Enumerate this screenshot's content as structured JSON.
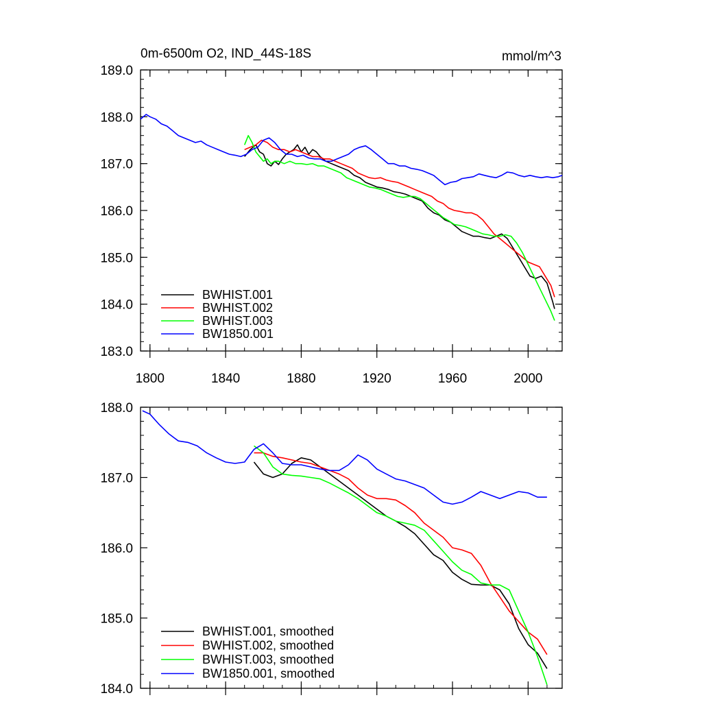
{
  "chart_data": [
    {
      "type": "line",
      "title": "0m-6500m O2, IND_44S-18S",
      "units": "mmol/m^3",
      "xlim": [
        1795,
        2018
      ],
      "ylim": [
        183.0,
        189.0
      ],
      "xticks": [
        1800,
        1840,
        1880,
        1920,
        1960,
        2000
      ],
      "yticks": [
        183.0,
        184.0,
        185.0,
        186.0,
        187.0,
        188.0,
        189.0
      ],
      "yticks_label": [
        "183.0",
        "184.0",
        "185.0",
        "186.0",
        "187.0",
        "188.0",
        "189.0"
      ],
      "xticks_label": [
        "1800",
        "1840",
        "1880",
        "1920",
        "1960",
        "2000"
      ],
      "grid": false,
      "legend_position": "bottom-left",
      "series": [
        {
          "name": "BWHIST.001",
          "color": "#000000",
          "x": [
            1850,
            1853,
            1856,
            1858,
            1860,
            1862,
            1864,
            1866,
            1868,
            1870,
            1872,
            1874,
            1876,
            1878,
            1880,
            1882,
            1884,
            1886,
            1888,
            1890,
            1893,
            1896,
            1899,
            1902,
            1905,
            1908,
            1911,
            1914,
            1917,
            1920,
            1923,
            1926,
            1929,
            1932,
            1935,
            1938,
            1941,
            1944,
            1947,
            1950,
            1953,
            1956,
            1959,
            1962,
            1965,
            1968,
            1971,
            1974,
            1977,
            1980,
            1983,
            1986,
            1989,
            1992,
            1995,
            1998,
            2001,
            2004,
            2007,
            2010,
            2013,
            2014
          ],
          "y": [
            187.15,
            187.3,
            187.4,
            187.25,
            187.2,
            187.0,
            186.95,
            187.05,
            186.98,
            187.1,
            187.2,
            187.25,
            187.3,
            187.4,
            187.25,
            187.35,
            187.2,
            187.3,
            187.25,
            187.15,
            187.05,
            187.0,
            186.95,
            186.9,
            186.85,
            186.75,
            186.7,
            186.6,
            186.55,
            186.5,
            186.48,
            186.45,
            186.4,
            186.38,
            186.35,
            186.3,
            186.25,
            186.2,
            186.05,
            185.95,
            185.9,
            185.8,
            185.75,
            185.65,
            185.55,
            185.5,
            185.45,
            185.45,
            185.42,
            185.4,
            185.45,
            185.5,
            185.4,
            185.2,
            185.0,
            184.8,
            184.6,
            184.55,
            184.6,
            184.45,
            184.05,
            183.9
          ]
        },
        {
          "name": "BWHIST.002",
          "color": "#ff0000",
          "x": [
            1850,
            1853,
            1856,
            1859,
            1862,
            1865,
            1868,
            1871,
            1874,
            1877,
            1880,
            1883,
            1886,
            1889,
            1892,
            1895,
            1898,
            1901,
            1904,
            1907,
            1910,
            1913,
            1916,
            1919,
            1922,
            1925,
            1928,
            1931,
            1934,
            1937,
            1940,
            1943,
            1946,
            1949,
            1952,
            1955,
            1958,
            1961,
            1964,
            1967,
            1970,
            1973,
            1976,
            1979,
            1982,
            1985,
            1988,
            1991,
            1994,
            1997,
            2000,
            2003,
            2006,
            2009,
            2012,
            2014
          ],
          "y": [
            187.3,
            187.35,
            187.4,
            187.5,
            187.45,
            187.35,
            187.3,
            187.3,
            187.25,
            187.3,
            187.25,
            187.2,
            187.15,
            187.15,
            187.1,
            187.1,
            187.05,
            187.0,
            186.95,
            186.9,
            186.8,
            186.75,
            186.7,
            186.68,
            186.7,
            186.65,
            186.62,
            186.6,
            186.55,
            186.5,
            186.45,
            186.4,
            186.35,
            186.3,
            186.2,
            186.15,
            186.05,
            186.0,
            185.98,
            185.95,
            185.95,
            185.9,
            185.8,
            185.65,
            185.5,
            185.4,
            185.3,
            185.2,
            185.1,
            185.0,
            184.9,
            184.85,
            184.8,
            184.6,
            184.4,
            184.15
          ]
        },
        {
          "name": "BWHIST.003",
          "color": "#00ff00",
          "x": [
            1850,
            1852,
            1854,
            1856,
            1858,
            1860,
            1862,
            1864,
            1866,
            1868,
            1871,
            1874,
            1877,
            1880,
            1883,
            1886,
            1889,
            1892,
            1895,
            1898,
            1901,
            1904,
            1907,
            1910,
            1913,
            1916,
            1919,
            1922,
            1925,
            1928,
            1931,
            1934,
            1937,
            1940,
            1943,
            1946,
            1949,
            1952,
            1955,
            1958,
            1961,
            1964,
            1967,
            1970,
            1973,
            1976,
            1979,
            1982,
            1985,
            1988,
            1991,
            1994,
            1997,
            2000,
            2003,
            2006,
            2009,
            2012,
            2014
          ],
          "y": [
            187.4,
            187.6,
            187.45,
            187.25,
            187.15,
            187.05,
            187.1,
            187.0,
            187.05,
            187.05,
            187.0,
            187.05,
            187.0,
            187.0,
            186.98,
            187.0,
            186.95,
            186.95,
            186.9,
            186.85,
            186.8,
            186.7,
            186.65,
            186.6,
            186.55,
            186.5,
            186.48,
            186.45,
            186.4,
            186.35,
            186.3,
            186.28,
            186.3,
            186.3,
            186.25,
            186.15,
            186.05,
            185.95,
            185.85,
            185.78,
            185.7,
            185.68,
            185.65,
            185.6,
            185.55,
            185.5,
            185.48,
            185.45,
            185.45,
            185.48,
            185.45,
            185.3,
            185.1,
            184.85,
            184.6,
            184.35,
            184.1,
            183.85,
            183.65
          ]
        },
        {
          "name": "BW1850.001",
          "color": "#0000ff",
          "x": [
            1795,
            1798,
            1800,
            1803,
            1806,
            1809,
            1812,
            1815,
            1818,
            1821,
            1824,
            1827,
            1830,
            1833,
            1836,
            1839,
            1842,
            1845,
            1848,
            1851,
            1854,
            1857,
            1860,
            1863,
            1866,
            1869,
            1872,
            1875,
            1878,
            1881,
            1884,
            1887,
            1890,
            1893,
            1896,
            1899,
            1902,
            1905,
            1908,
            1911,
            1914,
            1917,
            1920,
            1923,
            1926,
            1929,
            1932,
            1935,
            1938,
            1941,
            1944,
            1947,
            1950,
            1953,
            1956,
            1959,
            1962,
            1965,
            1968,
            1971,
            1974,
            1977,
            1980,
            1983,
            1986,
            1989,
            1992,
            1995,
            1998,
            2001,
            2004,
            2007,
            2010,
            2013,
            2016,
            2018
          ],
          "y": [
            187.95,
            188.05,
            188.0,
            187.95,
            187.85,
            187.8,
            187.7,
            187.6,
            187.55,
            187.5,
            187.45,
            187.48,
            187.4,
            187.35,
            187.3,
            187.25,
            187.2,
            187.18,
            187.15,
            187.2,
            187.3,
            187.35,
            187.5,
            187.55,
            187.45,
            187.3,
            187.2,
            187.2,
            187.15,
            187.18,
            187.12,
            187.1,
            187.1,
            187.05,
            187.05,
            187.1,
            187.15,
            187.2,
            187.3,
            187.35,
            187.38,
            187.3,
            187.2,
            187.1,
            187.0,
            187.0,
            186.95,
            186.95,
            186.9,
            186.88,
            186.85,
            186.8,
            186.75,
            186.65,
            186.55,
            186.6,
            186.62,
            186.68,
            186.7,
            186.72,
            186.78,
            186.75,
            186.72,
            186.7,
            186.75,
            186.82,
            186.8,
            186.75,
            186.72,
            186.75,
            186.72,
            186.7,
            186.72,
            186.7,
            186.72,
            186.75
          ]
        }
      ]
    },
    {
      "type": "line",
      "title": "",
      "xlim": [
        1795,
        2018
      ],
      "ylim": [
        184.0,
        188.0
      ],
      "xticks": [
        1800,
        1840,
        1880,
        1920,
        1960,
        2000
      ],
      "yticks": [
        184.0,
        185.0,
        186.0,
        187.0,
        188.0
      ],
      "yticks_label": [
        "184.0",
        "185.0",
        "186.0",
        "187.0",
        "188.0"
      ],
      "grid": false,
      "legend_position": "bottom-left",
      "series": [
        {
          "name": "BWHIST.001, smoothed",
          "color": "#000000",
          "x": [
            1855,
            1860,
            1865,
            1870,
            1875,
            1880,
            1885,
            1890,
            1895,
            1900,
            1905,
            1910,
            1915,
            1920,
            1925,
            1930,
            1935,
            1940,
            1945,
            1950,
            1955,
            1960,
            1965,
            1970,
            1975,
            1980,
            1985,
            1990,
            1995,
            2000,
            2005,
            2010
          ],
          "y": [
            187.22,
            187.05,
            187.0,
            187.05,
            187.2,
            187.28,
            187.25,
            187.15,
            187.05,
            186.95,
            186.85,
            186.75,
            186.65,
            186.55,
            186.45,
            186.38,
            186.3,
            186.2,
            186.05,
            185.9,
            185.82,
            185.65,
            185.55,
            185.48,
            185.47,
            185.47,
            185.4,
            185.2,
            184.85,
            184.62,
            184.5,
            184.28
          ]
        },
        {
          "name": "BWHIST.002, smoothed",
          "color": "#ff0000",
          "x": [
            1855,
            1860,
            1865,
            1870,
            1875,
            1880,
            1885,
            1890,
            1895,
            1900,
            1905,
            1910,
            1915,
            1920,
            1925,
            1930,
            1935,
            1940,
            1945,
            1950,
            1955,
            1960,
            1965,
            1970,
            1975,
            1980,
            1985,
            1990,
            1995,
            2000,
            2005,
            2010
          ],
          "y": [
            187.35,
            187.35,
            187.3,
            187.28,
            187.25,
            187.22,
            187.2,
            187.15,
            187.1,
            187.05,
            186.98,
            186.85,
            186.75,
            186.7,
            186.7,
            186.68,
            186.6,
            186.5,
            186.35,
            186.25,
            186.15,
            186.0,
            185.97,
            185.92,
            185.75,
            185.5,
            185.3,
            185.1,
            184.95,
            184.8,
            184.7,
            184.48
          ]
        },
        {
          "name": "BWHIST.003, smoothed",
          "color": "#00ff00",
          "x": [
            1855,
            1860,
            1865,
            1870,
            1875,
            1880,
            1885,
            1890,
            1895,
            1900,
            1905,
            1910,
            1915,
            1920,
            1925,
            1930,
            1935,
            1940,
            1945,
            1950,
            1955,
            1960,
            1965,
            1970,
            1975,
            1980,
            1985,
            1990,
            1995,
            2000,
            2005,
            2010
          ],
          "y": [
            187.45,
            187.35,
            187.15,
            187.05,
            187.03,
            187.02,
            187.0,
            186.98,
            186.92,
            186.85,
            186.78,
            186.7,
            186.6,
            186.5,
            186.45,
            186.38,
            186.35,
            186.32,
            186.25,
            186.1,
            185.95,
            185.8,
            185.68,
            185.62,
            185.5,
            185.47,
            185.47,
            185.4,
            185.1,
            184.8,
            184.45,
            184.05
          ]
        },
        {
          "name": "BW1850.001, smoothed",
          "color": "#0000ff",
          "x": [
            1796,
            1800,
            1805,
            1810,
            1815,
            1820,
            1825,
            1830,
            1835,
            1840,
            1845,
            1850,
            1855,
            1860,
            1865,
            1870,
            1875,
            1880,
            1885,
            1890,
            1895,
            1900,
            1905,
            1910,
            1915,
            1920,
            1925,
            1930,
            1935,
            1940,
            1945,
            1950,
            1955,
            1960,
            1965,
            1970,
            1975,
            1980,
            1985,
            1990,
            1995,
            2000,
            2005,
            2010
          ],
          "y": [
            187.95,
            187.9,
            187.75,
            187.62,
            187.52,
            187.5,
            187.45,
            187.35,
            187.28,
            187.22,
            187.2,
            187.22,
            187.4,
            187.48,
            187.35,
            187.2,
            187.18,
            187.18,
            187.15,
            187.12,
            187.1,
            187.1,
            187.18,
            187.32,
            187.25,
            187.12,
            187.05,
            186.98,
            186.95,
            186.9,
            186.85,
            186.75,
            186.65,
            186.62,
            186.65,
            186.72,
            186.8,
            186.75,
            186.7,
            186.75,
            186.8,
            186.78,
            186.72,
            186.72
          ]
        }
      ]
    }
  ]
}
